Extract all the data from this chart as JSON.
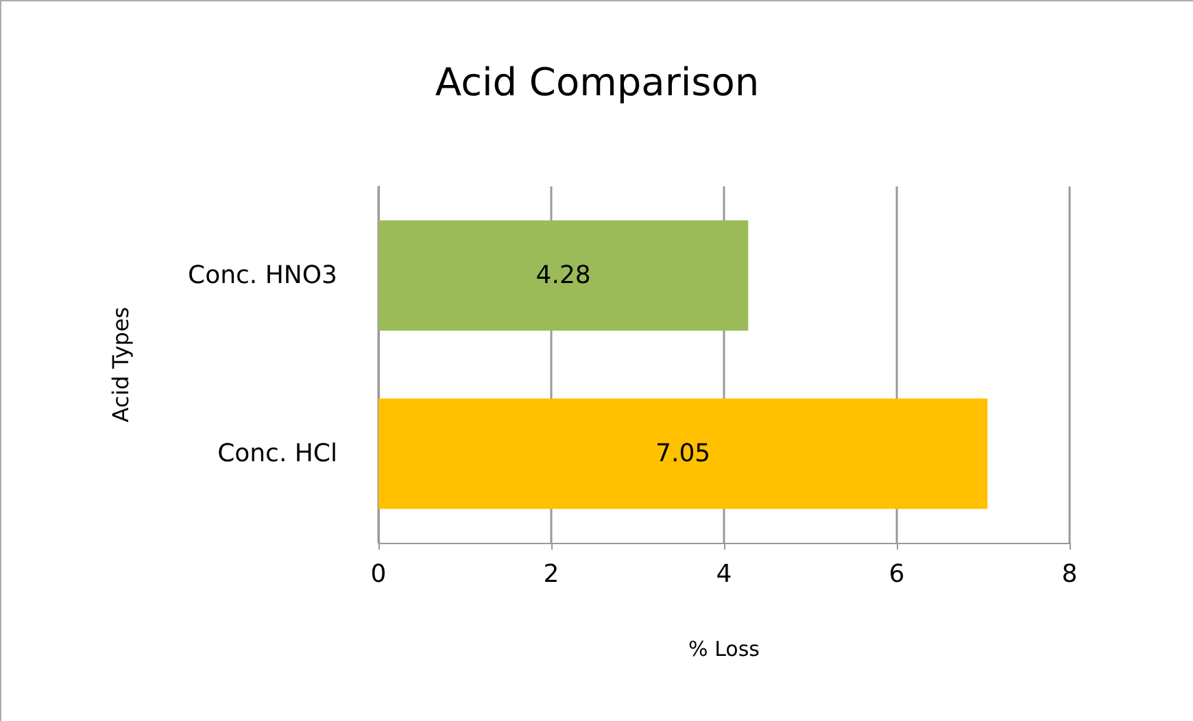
{
  "chart_data": {
    "type": "bar",
    "orientation": "horizontal",
    "title": "Acid Comparison",
    "xlabel": "% Loss",
    "ylabel": "Acid Types",
    "categories": [
      "Conc. HNO3",
      "Conc. HCl"
    ],
    "values": [
      4.28,
      7.05
    ],
    "colors": [
      "#9bbb59",
      "#ffc000"
    ],
    "xlim": [
      0,
      8
    ],
    "xticks": [
      0,
      2,
      4,
      6,
      8
    ],
    "grid": "x",
    "data_labels": true
  }
}
